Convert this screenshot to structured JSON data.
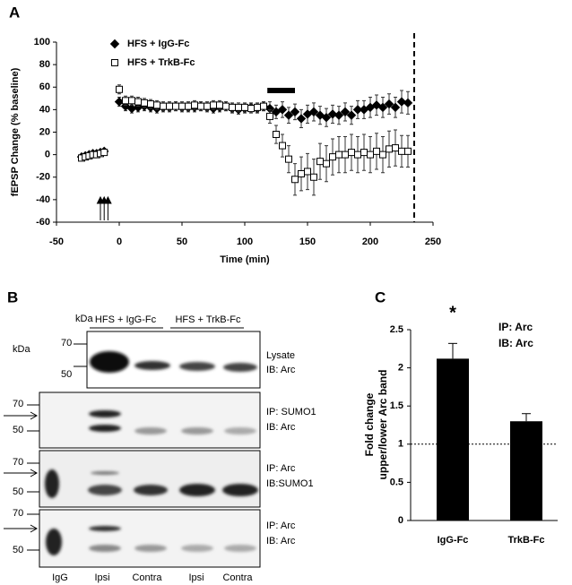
{
  "panel_labels": [
    "A",
    "B",
    "C"
  ],
  "chart_data": [
    {
      "type": "scatter",
      "xlabel": "Time (min)",
      "ylabel": "fEPSP Change (% baseline)",
      "xlim": [
        -50,
        250
      ],
      "xticks": [
        -50,
        0,
        50,
        100,
        150,
        200,
        250
      ],
      "ylim": [
        -60,
        100
      ],
      "yticks": [
        -60,
        -40,
        -20,
        0,
        20,
        40,
        60,
        80,
        100
      ],
      "legend": "upper-left",
      "reference_line_x": 235,
      "highlight_bar": {
        "x": [
          118,
          140
        ],
        "y": 57
      },
      "stimulus_x": [
        -15,
        -12,
        -9
      ],
      "x": [
        -30,
        -27,
        -24,
        -21,
        -18,
        -15,
        -12,
        0,
        5,
        10,
        15,
        20,
        25,
        30,
        35,
        40,
        45,
        50,
        55,
        60,
        65,
        70,
        75,
        80,
        85,
        90,
        95,
        100,
        105,
        110,
        115,
        120,
        125,
        130,
        135,
        140,
        145,
        150,
        155,
        160,
        165,
        170,
        175,
        180,
        185,
        190,
        195,
        200,
        205,
        210,
        215,
        220,
        225,
        230
      ],
      "series": [
        {
          "name": "HFS + IgG-Fc",
          "color": "#000000",
          "marker": "diamond",
          "marker_fill": "#000000",
          "values": [
            -2,
            -1,
            0,
            1,
            1,
            2,
            3,
            47,
            43,
            41,
            42,
            43,
            42,
            41,
            42,
            42,
            43,
            42,
            42,
            42,
            43,
            42,
            41,
            42,
            43,
            41,
            40,
            41,
            42,
            41,
            43,
            41,
            38,
            40,
            35,
            38,
            32,
            36,
            38,
            35,
            33,
            36,
            35,
            38,
            35,
            40,
            40,
            42,
            44,
            42,
            45,
            42,
            47,
            46
          ],
          "errors": [
            2,
            2,
            2,
            2,
            2,
            2,
            2,
            4,
            4,
            4,
            4,
            4,
            4,
            4,
            4,
            4,
            4,
            4,
            4,
            4,
            4,
            4,
            4,
            4,
            4,
            4,
            4,
            4,
            4,
            4,
            4,
            6,
            6,
            7,
            7,
            7,
            8,
            8,
            8,
            8,
            8,
            8,
            8,
            8,
            8,
            8,
            8,
            9,
            9,
            9,
            9,
            9,
            10,
            10
          ]
        },
        {
          "name": "HFS + TrkB-Fc",
          "color": "#000000",
          "marker": "square",
          "marker_fill": "#ffffff",
          "values": [
            -3,
            -2,
            -1,
            0,
            0,
            1,
            2,
            58,
            48,
            48,
            47,
            46,
            45,
            44,
            43,
            43,
            43,
            43,
            43,
            44,
            43,
            43,
            44,
            44,
            43,
            42,
            42,
            42,
            41,
            42,
            43,
            34,
            18,
            8,
            -4,
            -22,
            -17,
            -15,
            -20,
            -6,
            -8,
            -2,
            0,
            0,
            2,
            0,
            2,
            0,
            3,
            0,
            5,
            6,
            3,
            3
          ],
          "errors": [
            2,
            2,
            2,
            2,
            2,
            2,
            2,
            4,
            4,
            4,
            4,
            4,
            4,
            4,
            4,
            4,
            4,
            4,
            4,
            4,
            4,
            4,
            4,
            4,
            4,
            4,
            4,
            4,
            4,
            4,
            4,
            6,
            8,
            10,
            12,
            14,
            15,
            16,
            16,
            16,
            16,
            16,
            16,
            16,
            16,
            16,
            16,
            16,
            16,
            16,
            16,
            16,
            14,
            14
          ]
        }
      ]
    },
    {
      "type": "bar",
      "ylabel": [
        "Fold change",
        "upper/lower Arc band"
      ],
      "categories": [
        "IgG-Fc",
        "TrkB-Fc"
      ],
      "values": [
        2.12,
        1.3
      ],
      "errors": [
        0.2,
        0.1
      ],
      "color": "#000000",
      "ylim": [
        0,
        2.5
      ],
      "yticks": [
        0,
        0.5,
        1,
        1.5,
        2,
        2.5
      ],
      "reference_line_y": 1,
      "significance": "*",
      "annotations": [
        "IP: Arc",
        "IB: Arc"
      ]
    }
  ],
  "blot": {
    "kda_label": "kDa",
    "kda_side_label": "kDa",
    "groups": [
      "HFS + IgG-Fc",
      "HFS + TrkB-Fc"
    ],
    "lanes": [
      "IgG",
      "Ipsi",
      "Contra",
      "Ipsi",
      "Contra"
    ],
    "panels": [
      {
        "markers": [
          "70",
          "50"
        ],
        "label": [
          "Lysate",
          "IB: Arc"
        ]
      },
      {
        "markers": [
          "70",
          "50"
        ],
        "label": [
          "IP: SUMO1",
          "IB: Arc"
        ]
      },
      {
        "markers": [
          "70",
          "50"
        ],
        "label": [
          "IP: Arc",
          "IB:SUMO1"
        ]
      },
      {
        "markers": [
          "70",
          "50"
        ],
        "label": [
          "IP: Arc",
          "IB: Arc"
        ]
      }
    ]
  }
}
